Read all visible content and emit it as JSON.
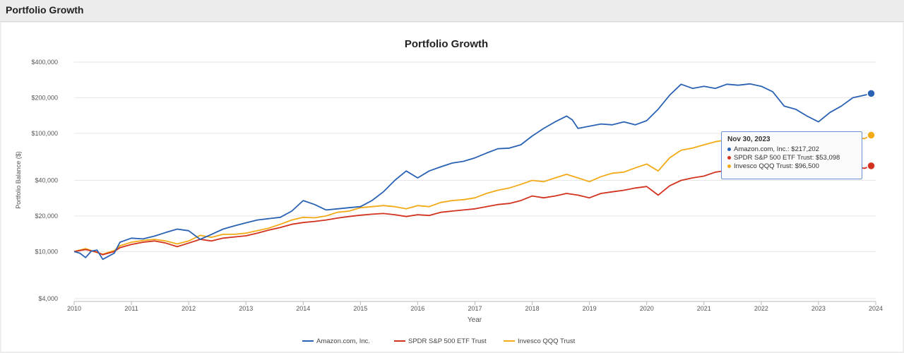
{
  "header": {
    "title": "Portfolio Growth"
  },
  "tooltip": {
    "date": "Nov 30, 2023",
    "rows": [
      {
        "text": "Amazon.com, Inc.: $217,202",
        "color": "#2a62b3"
      },
      {
        "text": "SPDR S&P 500 ETF Trust: $53,098",
        "color": "#d2321e"
      },
      {
        "text": "Invesco QQQ Trust: $96,500",
        "color": "#f2aa17"
      }
    ]
  },
  "chart_data": {
    "type": "line",
    "title": "Portfolio Growth",
    "xlabel": "Year",
    "ylabel": "Portfolio Balance ($)",
    "yscale": "log",
    "ylim": [
      4000,
      400000
    ],
    "xlim": [
      2010,
      2024
    ],
    "x_ticks": [
      "2010",
      "2011",
      "2012",
      "2013",
      "2014",
      "2015",
      "2016",
      "2017",
      "2018",
      "2019",
      "2020",
      "2021",
      "2022",
      "2023",
      "2024"
    ],
    "y_ticks": [
      {
        "value": 4000,
        "label": "$4,000"
      },
      {
        "value": 10000,
        "label": "$10,000"
      },
      {
        "value": 20000,
        "label": "$20,000"
      },
      {
        "value": 40000,
        "label": "$40,000"
      },
      {
        "value": 100000,
        "label": "$100,000"
      },
      {
        "value": 200000,
        "label": "$200,000"
      },
      {
        "value": 400000,
        "label": "$400,000"
      }
    ],
    "grid": true,
    "legend_position": "bottom-center",
    "series": [
      {
        "name": "Amazon.com, Inc.",
        "color": "#2a62b3",
        "points": [
          [
            2010.0,
            10000
          ],
          [
            2010.1,
            9700
          ],
          [
            2010.2,
            8900
          ],
          [
            2010.3,
            10100
          ],
          [
            2010.4,
            10300
          ],
          [
            2010.5,
            8600
          ],
          [
            2010.7,
            9700
          ],
          [
            2010.8,
            12000
          ],
          [
            2011.0,
            13000
          ],
          [
            2011.2,
            12800
          ],
          [
            2011.4,
            13500
          ],
          [
            2011.6,
            14500
          ],
          [
            2011.8,
            15500
          ],
          [
            2012.0,
            15000
          ],
          [
            2012.2,
            12700
          ],
          [
            2012.4,
            14000
          ],
          [
            2012.6,
            15500
          ],
          [
            2012.8,
            16500
          ],
          [
            2013.0,
            17500
          ],
          [
            2013.2,
            18500
          ],
          [
            2013.4,
            19000
          ],
          [
            2013.6,
            19500
          ],
          [
            2013.8,
            22000
          ],
          [
            2014.0,
            27000
          ],
          [
            2014.2,
            25000
          ],
          [
            2014.4,
            22500
          ],
          [
            2014.6,
            23000
          ],
          [
            2014.8,
            23500
          ],
          [
            2015.0,
            24000
          ],
          [
            2015.2,
            27000
          ],
          [
            2015.4,
            32000
          ],
          [
            2015.6,
            40000
          ],
          [
            2015.8,
            48000
          ],
          [
            2016.0,
            42000
          ],
          [
            2016.2,
            48000
          ],
          [
            2016.4,
            52000
          ],
          [
            2016.6,
            56000
          ],
          [
            2016.8,
            58000
          ],
          [
            2017.0,
            62000
          ],
          [
            2017.2,
            68000
          ],
          [
            2017.4,
            74000
          ],
          [
            2017.6,
            75000
          ],
          [
            2017.8,
            80000
          ],
          [
            2018.0,
            95000
          ],
          [
            2018.2,
            110000
          ],
          [
            2018.4,
            125000
          ],
          [
            2018.6,
            140000
          ],
          [
            2018.7,
            130000
          ],
          [
            2018.8,
            110000
          ],
          [
            2019.0,
            115000
          ],
          [
            2019.2,
            120000
          ],
          [
            2019.4,
            118000
          ],
          [
            2019.6,
            125000
          ],
          [
            2019.8,
            118000
          ],
          [
            2020.0,
            128000
          ],
          [
            2020.2,
            160000
          ],
          [
            2020.4,
            210000
          ],
          [
            2020.6,
            260000
          ],
          [
            2020.8,
            240000
          ],
          [
            2021.0,
            250000
          ],
          [
            2021.2,
            240000
          ],
          [
            2021.4,
            260000
          ],
          [
            2021.6,
            255000
          ],
          [
            2021.8,
            262000
          ],
          [
            2022.0,
            250000
          ],
          [
            2022.2,
            225000
          ],
          [
            2022.4,
            170000
          ],
          [
            2022.6,
            160000
          ],
          [
            2022.8,
            140000
          ],
          [
            2023.0,
            125000
          ],
          [
            2023.2,
            150000
          ],
          [
            2023.4,
            170000
          ],
          [
            2023.6,
            200000
          ],
          [
            2023.8,
            210000
          ],
          [
            2023.92,
            217202
          ]
        ]
      },
      {
        "name": "SPDR S&P 500 ETF Trust",
        "color": "#d2321e",
        "points": [
          [
            2010.0,
            10000
          ],
          [
            2010.2,
            10400
          ],
          [
            2010.4,
            9900
          ],
          [
            2010.5,
            9400
          ],
          [
            2010.7,
            10000
          ],
          [
            2010.8,
            10800
          ],
          [
            2011.0,
            11500
          ],
          [
            2011.2,
            12000
          ],
          [
            2011.4,
            12300
          ],
          [
            2011.6,
            11800
          ],
          [
            2011.8,
            11000
          ],
          [
            2012.0,
            11800
          ],
          [
            2012.2,
            12700
          ],
          [
            2012.4,
            12300
          ],
          [
            2012.6,
            13000
          ],
          [
            2012.8,
            13300
          ],
          [
            2013.0,
            13600
          ],
          [
            2013.2,
            14300
          ],
          [
            2013.4,
            15200
          ],
          [
            2013.6,
            16000
          ],
          [
            2013.8,
            17000
          ],
          [
            2014.0,
            17600
          ],
          [
            2014.2,
            18000
          ],
          [
            2014.4,
            18500
          ],
          [
            2014.6,
            19200
          ],
          [
            2014.8,
            19800
          ],
          [
            2015.0,
            20300
          ],
          [
            2015.2,
            20700
          ],
          [
            2015.4,
            21000
          ],
          [
            2015.6,
            20500
          ],
          [
            2015.8,
            19800
          ],
          [
            2016.0,
            20500
          ],
          [
            2016.2,
            20200
          ],
          [
            2016.4,
            21500
          ],
          [
            2016.6,
            22000
          ],
          [
            2016.8,
            22500
          ],
          [
            2017.0,
            23000
          ],
          [
            2017.2,
            24000
          ],
          [
            2017.4,
            25000
          ],
          [
            2017.6,
            25500
          ],
          [
            2017.8,
            27000
          ],
          [
            2018.0,
            29500
          ],
          [
            2018.2,
            28500
          ],
          [
            2018.4,
            29500
          ],
          [
            2018.6,
            31000
          ],
          [
            2018.8,
            30000
          ],
          [
            2019.0,
            28500
          ],
          [
            2019.2,
            31000
          ],
          [
            2019.4,
            32000
          ],
          [
            2019.6,
            33000
          ],
          [
            2019.8,
            34500
          ],
          [
            2020.0,
            35500
          ],
          [
            2020.2,
            30000
          ],
          [
            2020.4,
            36000
          ],
          [
            2020.6,
            40000
          ],
          [
            2020.8,
            42000
          ],
          [
            2021.0,
            43500
          ],
          [
            2021.2,
            47000
          ],
          [
            2021.4,
            48500
          ],
          [
            2021.6,
            50000
          ],
          [
            2021.8,
            53000
          ],
          [
            2022.0,
            55000
          ],
          [
            2022.2,
            52000
          ],
          [
            2022.4,
            45000
          ],
          [
            2022.6,
            47000
          ],
          [
            2022.8,
            43000
          ],
          [
            2023.0,
            47000
          ],
          [
            2023.2,
            49000
          ],
          [
            2023.4,
            51000
          ],
          [
            2023.6,
            53500
          ],
          [
            2023.8,
            50500
          ],
          [
            2023.92,
            53098
          ]
        ]
      },
      {
        "name": "Invesco QQQ Trust",
        "color": "#f2aa17",
        "points": [
          [
            2010.0,
            10000
          ],
          [
            2010.2,
            10600
          ],
          [
            2010.4,
            9800
          ],
          [
            2010.5,
            9500
          ],
          [
            2010.7,
            10200
          ],
          [
            2010.8,
            11200
          ],
          [
            2011.0,
            12000
          ],
          [
            2011.2,
            12400
          ],
          [
            2011.4,
            12700
          ],
          [
            2011.6,
            12300
          ],
          [
            2011.8,
            11600
          ],
          [
            2012.0,
            12300
          ],
          [
            2012.2,
            13700
          ],
          [
            2012.4,
            13200
          ],
          [
            2012.6,
            14000
          ],
          [
            2012.8,
            14000
          ],
          [
            2013.0,
            14300
          ],
          [
            2013.2,
            15000
          ],
          [
            2013.4,
            15800
          ],
          [
            2013.6,
            17000
          ],
          [
            2013.8,
            18500
          ],
          [
            2014.0,
            19500
          ],
          [
            2014.2,
            19300
          ],
          [
            2014.4,
            20000
          ],
          [
            2014.6,
            21500
          ],
          [
            2014.8,
            22000
          ],
          [
            2015.0,
            23500
          ],
          [
            2015.2,
            24000
          ],
          [
            2015.4,
            24500
          ],
          [
            2015.6,
            24000
          ],
          [
            2015.8,
            23000
          ],
          [
            2016.0,
            24500
          ],
          [
            2016.2,
            24000
          ],
          [
            2016.4,
            26000
          ],
          [
            2016.6,
            27000
          ],
          [
            2016.8,
            27500
          ],
          [
            2017.0,
            28500
          ],
          [
            2017.2,
            31000
          ],
          [
            2017.4,
            33000
          ],
          [
            2017.6,
            34500
          ],
          [
            2017.8,
            37000
          ],
          [
            2018.0,
            40000
          ],
          [
            2018.2,
            39000
          ],
          [
            2018.4,
            42000
          ],
          [
            2018.6,
            45000
          ],
          [
            2018.8,
            42000
          ],
          [
            2019.0,
            39000
          ],
          [
            2019.2,
            43000
          ],
          [
            2019.4,
            46000
          ],
          [
            2019.6,
            47000
          ],
          [
            2019.8,
            51000
          ],
          [
            2020.0,
            55000
          ],
          [
            2020.2,
            48000
          ],
          [
            2020.4,
            62000
          ],
          [
            2020.6,
            72000
          ],
          [
            2020.8,
            75000
          ],
          [
            2021.0,
            80000
          ],
          [
            2021.2,
            85000
          ],
          [
            2021.4,
            88000
          ],
          [
            2021.6,
            95000
          ],
          [
            2021.8,
            103000
          ],
          [
            2022.0,
            100000
          ],
          [
            2022.2,
            90000
          ],
          [
            2022.4,
            73000
          ],
          [
            2022.6,
            76000
          ],
          [
            2022.8,
            67000
          ],
          [
            2023.0,
            72000
          ],
          [
            2023.2,
            80000
          ],
          [
            2023.4,
            88000
          ],
          [
            2023.6,
            95000
          ],
          [
            2023.8,
            90000
          ],
          [
            2023.92,
            96500
          ]
        ]
      }
    ]
  }
}
